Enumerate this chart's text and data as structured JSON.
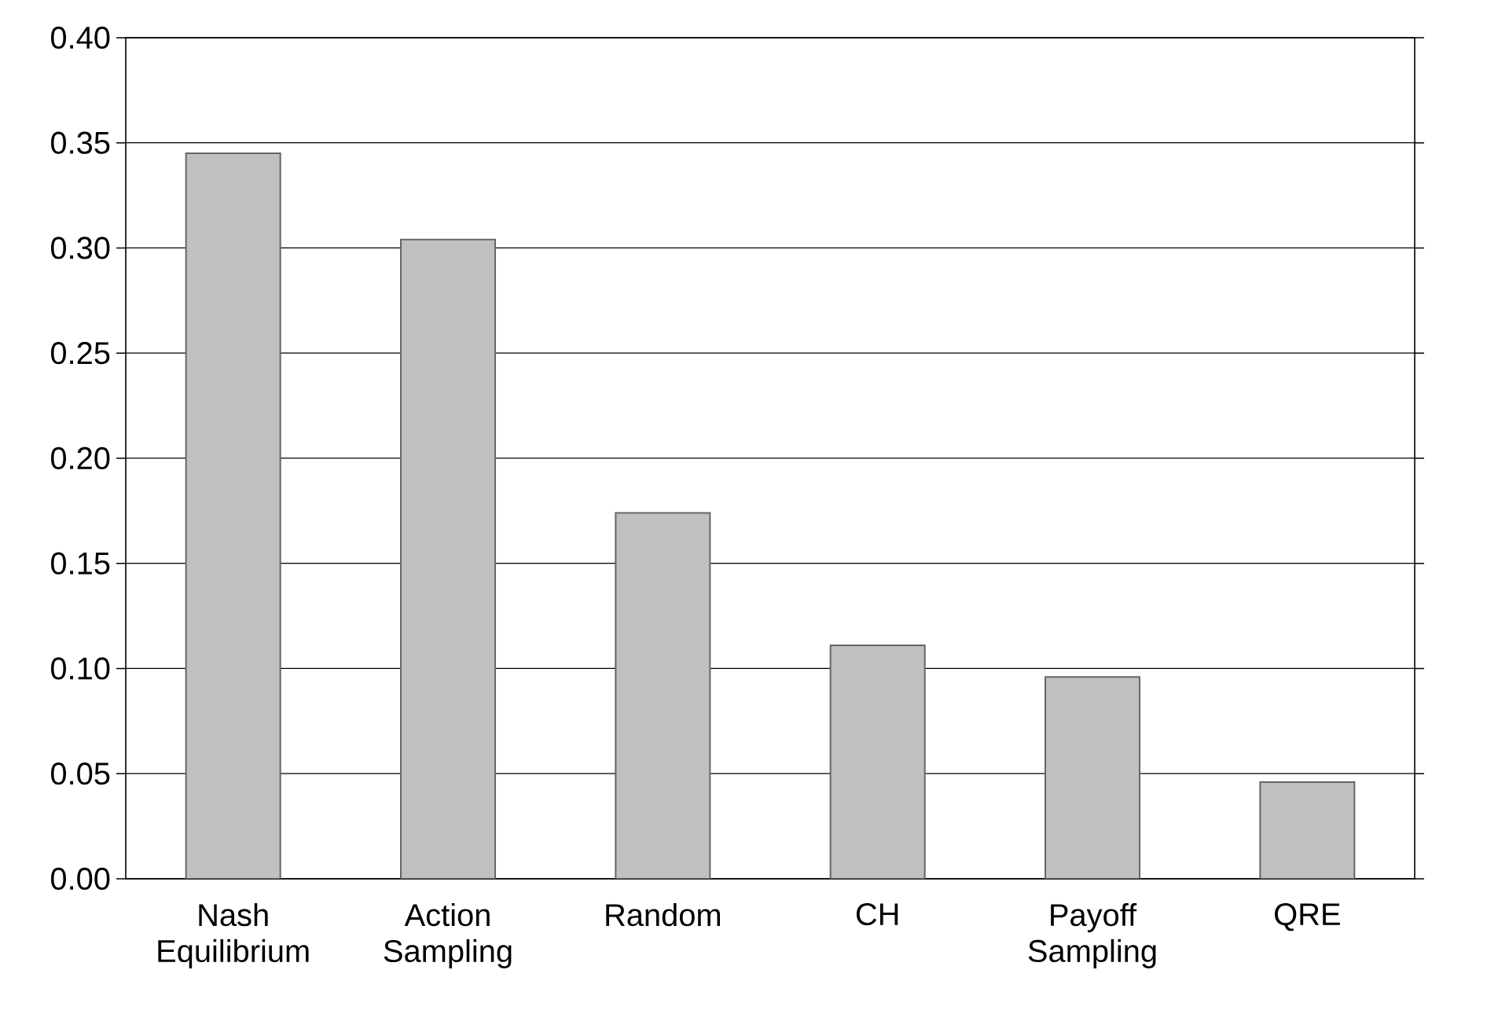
{
  "chart_data": {
    "type": "bar",
    "categories": [
      "Nash Equilibrium",
      "Action Sampling",
      "Random",
      "CH",
      "Payoff Sampling",
      "QRE"
    ],
    "values": [
      0.345,
      0.304,
      0.174,
      0.111,
      0.096,
      0.046
    ],
    "color": "#c0c0c0",
    "ylim": [
      0,
      0.4
    ],
    "yticks": [
      {
        "value": 0,
        "label": "0.00"
      },
      {
        "value": 0.05,
        "label": "0.05"
      },
      {
        "value": 0.1,
        "label": "0.10"
      },
      {
        "value": 0.15,
        "label": "0.15"
      },
      {
        "value": 0.2,
        "label": "0.20"
      },
      {
        "value": 0.25,
        "label": "0.25"
      },
      {
        "value": 0.3,
        "label": "0.30"
      },
      {
        "value": 0.35,
        "label": "0.35"
      },
      {
        "value": 0.4,
        "label": "0.40"
      }
    ],
    "grid": "y"
  }
}
